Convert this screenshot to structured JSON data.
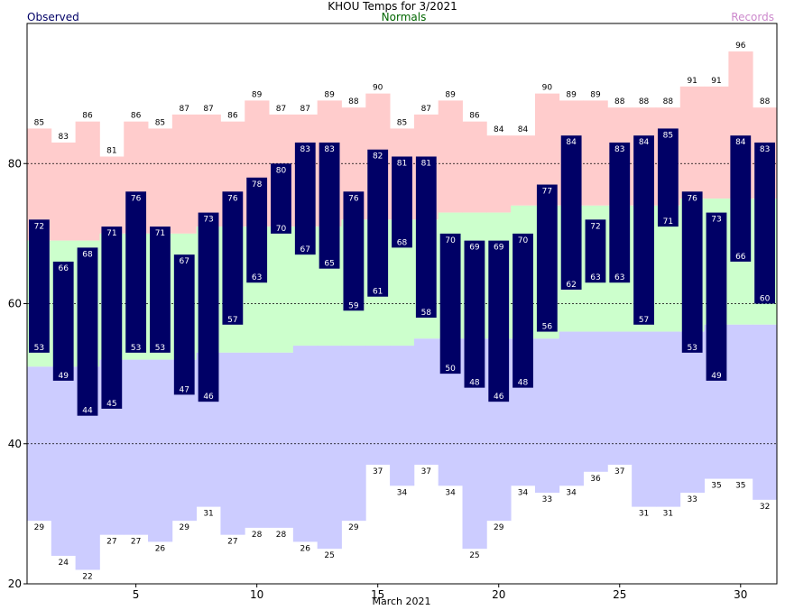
{
  "chart_data": {
    "type": "bar",
    "title": "KHOU Temps for 3/2021",
    "legend": {
      "observed": {
        "label": "Observed",
        "color": "#000066"
      },
      "normals": {
        "label": "Normals",
        "color": "#006600"
      },
      "records": {
        "label": "Records",
        "color": "#cc88cc"
      }
    },
    "xlabel": "March 2021",
    "ylim": [
      20,
      100
    ],
    "x_ticks": [
      5,
      10,
      15,
      20,
      25,
      30
    ],
    "y_ticks": [
      20,
      40,
      60,
      80
    ],
    "dashed_gridlines": [
      40,
      60,
      80
    ],
    "days": [
      1,
      2,
      3,
      4,
      5,
      6,
      7,
      8,
      9,
      10,
      11,
      12,
      13,
      14,
      15,
      16,
      17,
      18,
      19,
      20,
      21,
      22,
      23,
      24,
      25,
      26,
      27,
      28,
      29,
      30,
      31
    ],
    "series": [
      {
        "name": "Observed High",
        "values": [
          72,
          66,
          68,
          71,
          76,
          71,
          67,
          73,
          76,
          78,
          80,
          83,
          83,
          76,
          82,
          81,
          81,
          70,
          69,
          69,
          70,
          77,
          84,
          72,
          83,
          84,
          85,
          76,
          73,
          84,
          83
        ]
      },
      {
        "name": "Observed Low",
        "values": [
          53,
          49,
          44,
          45,
          53,
          53,
          47,
          46,
          57,
          63,
          70,
          67,
          65,
          59,
          61,
          68,
          58,
          50,
          48,
          46,
          48,
          56,
          62,
          63,
          63,
          57,
          71,
          53,
          49,
          66,
          60
        ]
      },
      {
        "name": "Record High",
        "values": [
          85,
          83,
          86,
          81,
          86,
          85,
          87,
          87,
          86,
          89,
          87,
          87,
          89,
          88,
          90,
          85,
          87,
          89,
          86,
          84,
          84,
          90,
          89,
          89,
          88,
          88,
          88,
          91,
          91,
          96,
          88
        ]
      },
      {
        "name": "Record Low",
        "values": [
          29,
          24,
          22,
          27,
          27,
          26,
          29,
          31,
          27,
          28,
          28,
          26,
          25,
          29,
          37,
          34,
          37,
          34,
          25,
          29,
          34,
          33,
          34,
          36,
          37,
          31,
          31,
          33,
          35,
          35,
          32
        ]
      },
      {
        "name": "Normal High",
        "values": [
          69,
          69,
          69,
          70,
          70,
          70,
          70,
          71,
          71,
          71,
          71,
          71,
          71,
          72,
          72,
          72,
          72,
          73,
          73,
          73,
          74,
          74,
          74,
          74,
          74,
          74,
          74,
          75,
          75,
          75,
          75
        ]
      },
      {
        "name": "Normal Low",
        "values": [
          51,
          51,
          51,
          52,
          52,
          52,
          52,
          53,
          53,
          53,
          53,
          54,
          54,
          54,
          54,
          54,
          55,
          55,
          55,
          55,
          55,
          55,
          56,
          56,
          56,
          56,
          56,
          56,
          57,
          57,
          57
        ]
      }
    ],
    "colors": {
      "record_band": "#ffcccc",
      "normal_band": "#ccffcc",
      "lower_band": "#ccccff",
      "observed_bar": "#000066",
      "observed_label": "#ffffff",
      "record_label": "#000000",
      "axis": "#000000",
      "grid": "#000000"
    }
  }
}
